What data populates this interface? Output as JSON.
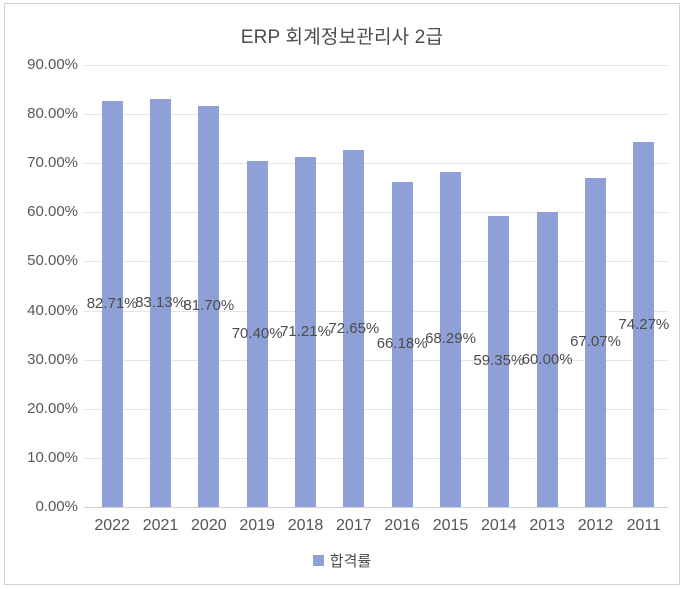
{
  "chart_data": {
    "type": "bar",
    "title": "ERP 회계정보관리사 2급",
    "categories": [
      "2022",
      "2021",
      "2020",
      "2019",
      "2018",
      "2017",
      "2016",
      "2015",
      "2014",
      "2013",
      "2012",
      "2011"
    ],
    "series": [
      {
        "name": "합격률",
        "values": [
          82.71,
          83.13,
          81.7,
          70.4,
          71.21,
          72.65,
          66.18,
          68.29,
          59.35,
          60.0,
          67.07,
          74.27
        ]
      }
    ],
    "data_labels": [
      "82.71%",
      "83.13%",
      "81.70%",
      "70.40%",
      "71.21%",
      "72.65%",
      "66.18%",
      "68.29%",
      "59.35%",
      "60.00%",
      "67.07%",
      "74.27%"
    ],
    "xlabel": "",
    "ylabel": "",
    "ylim": [
      0,
      90
    ],
    "y_ticks": [
      "0.00%",
      "10.00%",
      "20.00%",
      "30.00%",
      "40.00%",
      "50.00%",
      "60.00%",
      "70.00%",
      "80.00%",
      "90.00%"
    ],
    "grid": "horizontal",
    "data_label_position": "center-of-bar",
    "legend": {
      "position": "bottom",
      "label": "합격률"
    },
    "colors": {
      "bar": "#8ea0d5",
      "grid": "#e4e4e4",
      "baseline": "#d2d2d2",
      "title_text": "#4d4d4d",
      "tick_text": "#555555",
      "label_text": "#4c4c4c"
    }
  }
}
